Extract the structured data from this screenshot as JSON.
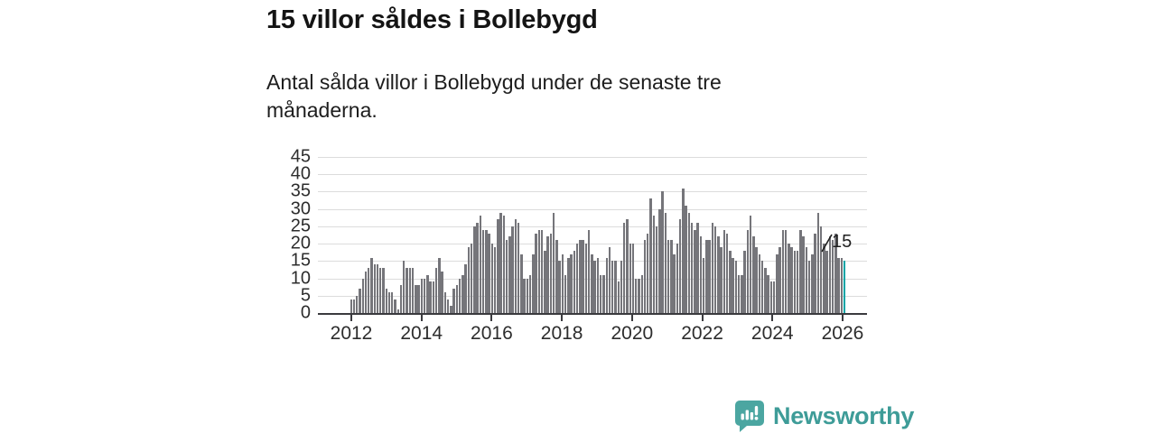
{
  "header": {
    "title": "15 villor såldes i Bollebygd",
    "subtitle": "Antal sålda villor i Bollebygd under de senaste tre månaderna."
  },
  "annotation": {
    "last_value_label": "15"
  },
  "footer": {
    "brand": "Newsworthy"
  },
  "colors": {
    "bar": "#75757a",
    "highlight": "#00a5a6",
    "axis": "#3a3a3e",
    "grid": "#dcdcdc",
    "text": "#2d2d2d",
    "brand": "#3e9c98"
  },
  "chart_data": {
    "type": "bar",
    "title": "15 villor såldes i Bollebygd",
    "subtitle": "Antal sålda villor i Bollebygd under de senaste tre månaderna.",
    "frequency": "monthly",
    "start": "2012-01",
    "end": "2026-01",
    "ylim": [
      0,
      45
    ],
    "y_ticks": [
      0,
      5,
      10,
      15,
      20,
      25,
      30,
      35,
      40,
      45
    ],
    "x_tick_labels": [
      "2012",
      "2014",
      "2016",
      "2018",
      "2020",
      "2022",
      "2024",
      "2026"
    ],
    "grid": true,
    "legend": false,
    "highlight_last": true,
    "highlight_value": 15,
    "values": [
      4,
      4,
      5,
      7,
      10,
      12,
      13,
      16,
      14,
      14,
      13,
      13,
      7,
      6,
      6,
      4,
      1,
      8,
      15,
      13,
      13,
      13,
      8,
      8,
      10,
      10,
      11,
      9,
      9,
      13,
      16,
      12,
      6,
      4,
      2,
      7,
      8,
      10,
      11,
      14,
      19,
      20,
      25,
      26,
      28,
      24,
      24,
      23,
      20,
      19,
      27,
      29,
      28,
      21,
      22,
      25,
      27,
      26,
      17,
      10,
      10,
      11,
      17,
      23,
      24,
      24,
      18,
      22,
      23,
      29,
      21,
      15,
      17,
      11,
      16,
      17,
      18,
      20,
      21,
      21,
      20,
      24,
      17,
      15,
      16,
      11,
      11,
      16,
      19,
      15,
      15,
      9,
      15,
      26,
      27,
      20,
      20,
      10,
      10,
      11,
      21,
      23,
      33,
      28,
      25,
      30,
      35,
      29,
      21,
      21,
      17,
      20,
      27,
      36,
      31,
      29,
      26,
      24,
      26,
      22,
      16,
      21,
      21,
      26,
      25,
      22,
      19,
      24,
      23,
      18,
      16,
      15,
      11,
      11,
      18,
      24,
      28,
      22,
      19,
      17,
      15,
      13,
      11,
      9,
      9,
      17,
      19,
      24,
      24,
      20,
      19,
      18,
      18,
      24,
      22,
      19,
      15,
      17,
      23,
      29,
      25,
      20,
      18,
      22,
      21,
      23,
      16,
      16,
      15
    ]
  }
}
